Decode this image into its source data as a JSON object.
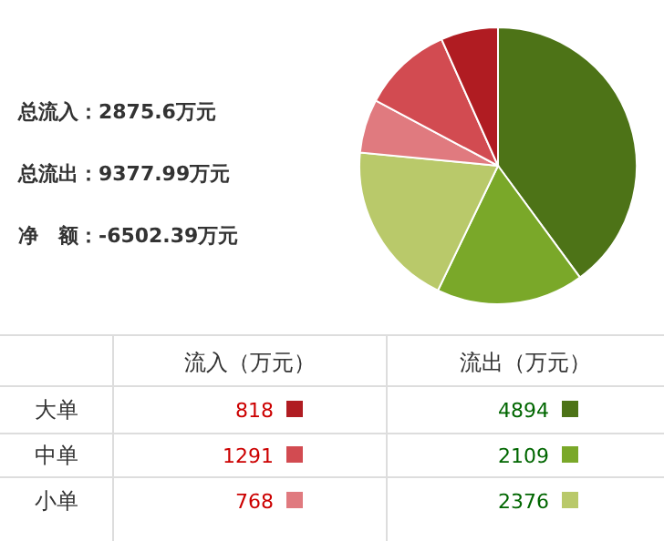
{
  "chart_data": [
    {
      "type": "pie",
      "categories": [
        null,
        null,
        null,
        null,
        null,
        null
      ],
      "values": [
        39.93,
        17.21,
        19.39,
        6.27,
        10.53,
        6.67
      ],
      "colors": [
        "#4d7317",
        "#7aa829",
        "#b9c96a",
        "#e07a7f",
        "#d24b51",
        "#b01c22"
      ],
      "annotations": [
        "总流入：2875.6万元",
        "总流出：9377.99万元",
        "净　额：-6502.39万元"
      ]
    },
    {
      "type": "other",
      "categories": [
        "大单",
        "中单",
        "小单"
      ],
      "data_labels": true,
      "series": [
        {
          "name": "流入（万元）",
          "colors": [
            "#b01c22",
            "#d24b51",
            "#e07a7f"
          ],
          "values": [
            818,
            1291,
            768
          ]
        },
        {
          "name": "流出（万元）",
          "colors": [
            "#4d7317",
            "#7aa829",
            "#b9c96a"
          ],
          "values": [
            4894,
            2109,
            2376
          ]
        }
      ]
    }
  ]
}
